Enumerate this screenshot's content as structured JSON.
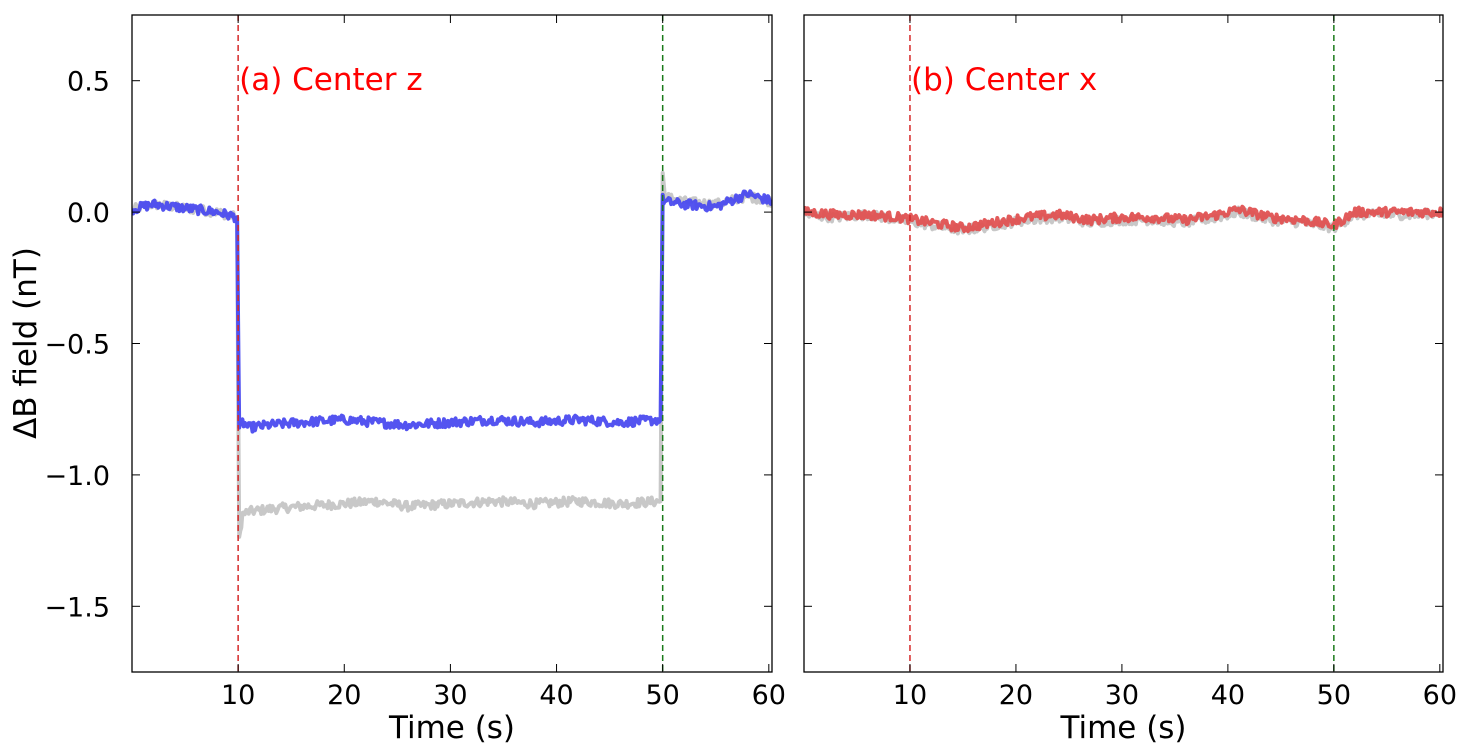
{
  "ylabel": "ΔB field (nT)",
  "chart_data": [
    {
      "type": "line",
      "panel_label": "(a) Center z",
      "xlabel": "Time (s)",
      "xlim": [
        0,
        60.3
      ],
      "ylim": [
        -1.75,
        0.75
      ],
      "xticks": [
        10,
        20,
        30,
        40,
        50,
        60
      ],
      "yticks": [
        0.5,
        0.0,
        -0.5,
        -1.0,
        -1.5
      ],
      "ytick_labels": [
        "0.5",
        "0.0",
        "−0.5",
        "−1.0",
        "−1.5"
      ],
      "vlines": [
        {
          "x": 10,
          "color": "#d62728"
        },
        {
          "x": 50,
          "color": "#1a7a1a"
        }
      ],
      "series": [
        {
          "color": "#c8c8c8",
          "x": [
            0,
            2,
            4,
            6,
            8,
            9.9,
            10.1,
            10.4,
            11,
            13,
            16,
            20,
            23,
            26,
            30,
            34,
            38,
            42,
            46,
            49.8,
            50.0,
            50.2,
            52,
            55,
            58,
            60.3
          ],
          "y": [
            0.01,
            0.03,
            0.02,
            0.01,
            0.0,
            -0.02,
            -1.25,
            -1.15,
            -1.14,
            -1.13,
            -1.12,
            -1.11,
            -1.1,
            -1.12,
            -1.11,
            -1.1,
            -1.11,
            -1.1,
            -1.11,
            -1.1,
            0.15,
            0.06,
            0.04,
            0.03,
            0.06,
            0.04
          ]
        },
        {
          "color": "#4b4bef",
          "x": [
            0,
            2,
            4,
            6,
            8,
            9.9,
            10.1,
            10.4,
            11,
            13,
            16,
            20,
            23,
            26,
            30,
            34,
            38,
            42,
            46,
            49.8,
            50.0,
            50.2,
            52,
            55,
            58,
            60.3
          ],
          "y": [
            0.01,
            0.03,
            0.02,
            0.01,
            0.0,
            -0.02,
            -0.82,
            -0.8,
            -0.82,
            -0.81,
            -0.8,
            -0.79,
            -0.8,
            -0.81,
            -0.8,
            -0.79,
            -0.8,
            -0.79,
            -0.8,
            -0.79,
            0.05,
            0.04,
            0.03,
            0.02,
            0.07,
            0.04
          ]
        }
      ]
    },
    {
      "type": "line",
      "panel_label": "(b) Center x",
      "xlabel": "Time (s)",
      "xlim": [
        0,
        60.3
      ],
      "ylim": [
        -1.75,
        0.75
      ],
      "xticks": [
        10,
        20,
        30,
        40,
        50,
        60
      ],
      "yticks": [
        0.5,
        0.0,
        -0.5,
        -1.0,
        -1.5
      ],
      "vlines": [
        {
          "x": 10,
          "color": "#d62728"
        },
        {
          "x": 50,
          "color": "#1a7a1a"
        }
      ],
      "series": [
        {
          "color": "#c8c8c8",
          "x": [
            0,
            3,
            6,
            9,
            12,
            15,
            18,
            21,
            24,
            27,
            30,
            33,
            36,
            39,
            41,
            44,
            47,
            50,
            52,
            55,
            58,
            60.3
          ],
          "y": [
            -0.01,
            -0.02,
            -0.01,
            -0.03,
            -0.05,
            -0.07,
            -0.05,
            -0.03,
            -0.02,
            -0.04,
            -0.03,
            -0.03,
            -0.04,
            -0.02,
            0.0,
            -0.03,
            -0.04,
            -0.06,
            -0.01,
            -0.01,
            -0.01,
            0.0
          ]
        },
        {
          "color": "#e05252",
          "x": [
            0,
            3,
            6,
            9,
            12,
            15,
            18,
            21,
            24,
            27,
            30,
            33,
            36,
            39,
            41,
            44,
            47,
            50,
            52,
            55,
            58,
            60.3
          ],
          "y": [
            0.0,
            -0.01,
            -0.01,
            -0.02,
            -0.04,
            -0.06,
            -0.04,
            -0.02,
            -0.01,
            -0.03,
            -0.02,
            -0.02,
            -0.03,
            -0.01,
            0.01,
            -0.02,
            -0.03,
            -0.05,
            0.0,
            0.0,
            0.0,
            0.0
          ]
        }
      ]
    }
  ]
}
